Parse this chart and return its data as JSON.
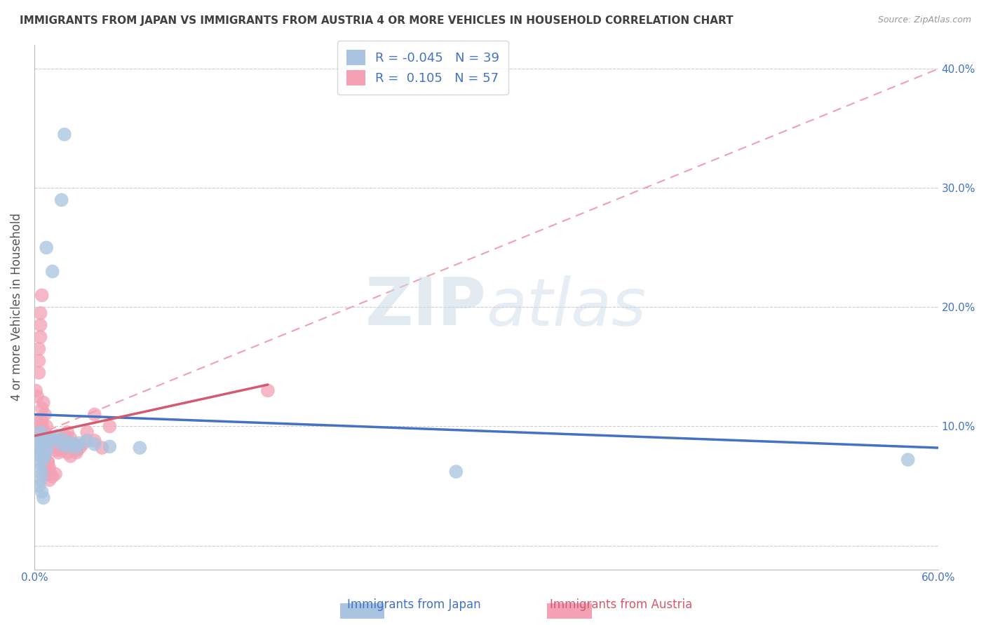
{
  "title": "IMMIGRANTS FROM JAPAN VS IMMIGRANTS FROM AUSTRIA 4 OR MORE VEHICLES IN HOUSEHOLD CORRELATION CHART",
  "source": "Source: ZipAtlas.com",
  "ylabel": "4 or more Vehicles in Household",
  "xlabel_japan": "Immigrants from Japan",
  "xlabel_austria": "Immigrants from Austria",
  "xlim": [
    0.0,
    0.6
  ],
  "ylim": [
    -0.02,
    0.42
  ],
  "japan_R": -0.045,
  "japan_N": 39,
  "austria_R": 0.105,
  "austria_N": 57,
  "japan_color": "#a8c4e0",
  "austria_color": "#f4a0b5",
  "japan_line_color": "#4472c4",
  "austria_line_color": "#d45a70",
  "austria_dashed_color": "#f0a0b0",
  "background_color": "#ffffff",
  "grid_color": "#cccccc",
  "title_color": "#404040",
  "axis_label_color": "#555555",
  "tick_color": "#4472c4",
  "japan_scatter_x": [
    0.002,
    0.003,
    0.004,
    0.003,
    0.004,
    0.005,
    0.004,
    0.003,
    0.005,
    0.006,
    0.004,
    0.005,
    0.003,
    0.006,
    0.007,
    0.005,
    0.006,
    0.007,
    0.008,
    0.006,
    0.01,
    0.012,
    0.015,
    0.018,
    0.02,
    0.022,
    0.025,
    0.028,
    0.03,
    0.035,
    0.04,
    0.05,
    0.07,
    0.008,
    0.012,
    0.018,
    0.02,
    0.28,
    0.58
  ],
  "japan_scatter_y": [
    0.085,
    0.08,
    0.075,
    0.07,
    0.065,
    0.06,
    0.055,
    0.05,
    0.045,
    0.04,
    0.095,
    0.09,
    0.088,
    0.092,
    0.085,
    0.078,
    0.082,
    0.076,
    0.08,
    0.073,
    0.09,
    0.088,
    0.092,
    0.085,
    0.088,
    0.083,
    0.086,
    0.082,
    0.086,
    0.088,
    0.085,
    0.083,
    0.082,
    0.25,
    0.23,
    0.29,
    0.345,
    0.062,
    0.072
  ],
  "austria_scatter_x": [
    0.001,
    0.002,
    0.002,
    0.003,
    0.003,
    0.004,
    0.003,
    0.004,
    0.004,
    0.005,
    0.005,
    0.004,
    0.005,
    0.006,
    0.005,
    0.006,
    0.006,
    0.007,
    0.007,
    0.008,
    0.006,
    0.007,
    0.008,
    0.009,
    0.008,
    0.009,
    0.01,
    0.01,
    0.009,
    0.01,
    0.012,
    0.014,
    0.012,
    0.014,
    0.016,
    0.014,
    0.016,
    0.018,
    0.016,
    0.018,
    0.02,
    0.022,
    0.024,
    0.02,
    0.022,
    0.026,
    0.028,
    0.024,
    0.03,
    0.028,
    0.032,
    0.035,
    0.04,
    0.045,
    0.04,
    0.05,
    0.155
  ],
  "austria_scatter_y": [
    0.13,
    0.125,
    0.105,
    0.155,
    0.145,
    0.175,
    0.165,
    0.195,
    0.185,
    0.21,
    0.1,
    0.095,
    0.115,
    0.09,
    0.105,
    0.12,
    0.085,
    0.11,
    0.095,
    0.1,
    0.07,
    0.075,
    0.065,
    0.07,
    0.06,
    0.065,
    0.06,
    0.055,
    0.07,
    0.065,
    0.058,
    0.06,
    0.09,
    0.088,
    0.085,
    0.08,
    0.078,
    0.088,
    0.082,
    0.08,
    0.085,
    0.078,
    0.075,
    0.092,
    0.095,
    0.085,
    0.08,
    0.09,
    0.082,
    0.078,
    0.085,
    0.095,
    0.088,
    0.082,
    0.11,
    0.1,
    0.13
  ],
  "watermark_zip": "ZIP",
  "watermark_atlas": "atlas"
}
